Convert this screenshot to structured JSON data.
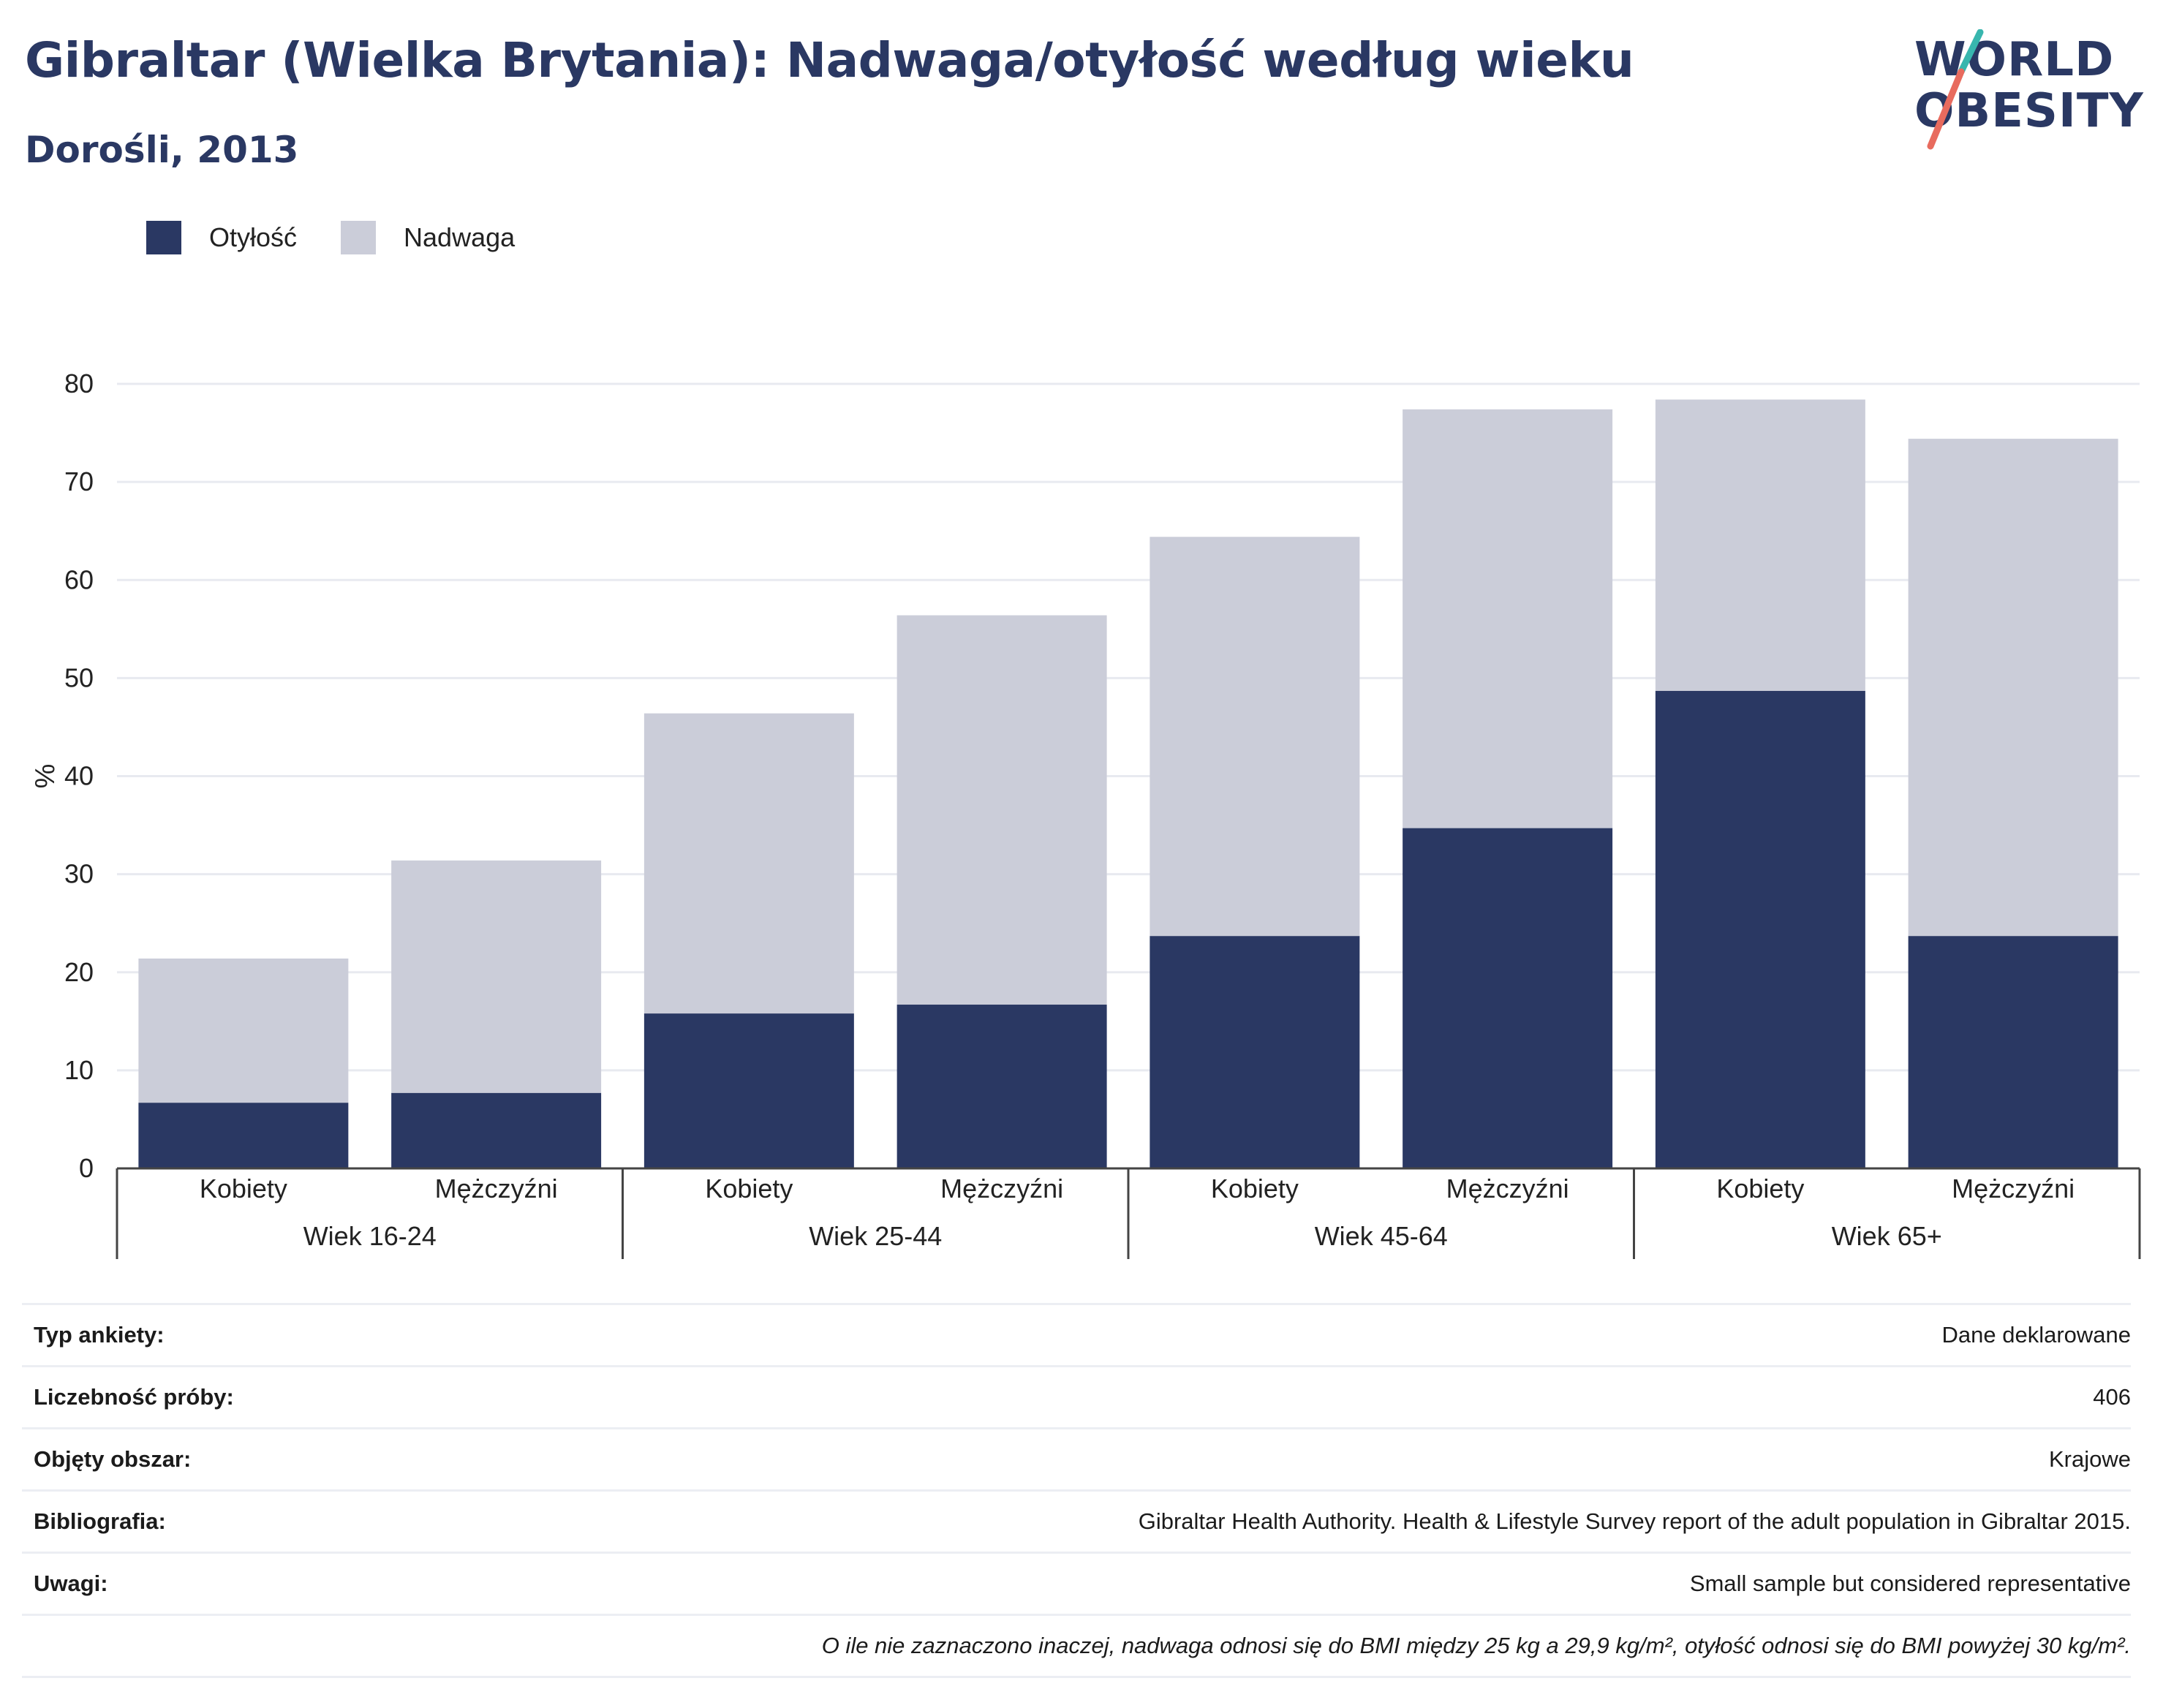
{
  "header": {
    "title": "Gibraltar (Wielka Brytania): Nadwaga/otyłość według wieku",
    "subtitle": "Dorośli, 2013"
  },
  "logo": {
    "line1": "WORLD",
    "line2": "OBESITY"
  },
  "colors": {
    "obesity": "#2a3863",
    "overweight": "#cbcdd9",
    "title": "#2a3863",
    "accent_teal": "#38b6ae",
    "accent_red": "#e86b5e"
  },
  "legend": [
    {
      "label": "Otyłość",
      "color": "#2a3863"
    },
    {
      "label": "Nadwaga",
      "color": "#cbcdd9"
    }
  ],
  "chart_data": {
    "type": "bar",
    "stacked": true,
    "ylabel": "%",
    "ylim": [
      0,
      80
    ],
    "yticks": [
      0,
      10,
      20,
      30,
      40,
      50,
      60,
      70,
      80
    ],
    "grid": true,
    "legend_position": "top-left",
    "groups": [
      "Wiek 16-24",
      "Wiek 25-44",
      "Wiek 45-64",
      "Wiek 65+"
    ],
    "categories": [
      "Kobiety",
      "Mężczyźni",
      "Kobiety",
      "Mężczyźni",
      "Kobiety",
      "Mężczyźni",
      "Kobiety",
      "Mężczyźni"
    ],
    "series": [
      {
        "name": "Otyłość",
        "values": [
          6.7,
          7.7,
          15.8,
          16.7,
          23.7,
          34.7,
          48.7,
          23.7
        ]
      },
      {
        "name": "Nadwaga",
        "values": [
          14.7,
          23.7,
          30.6,
          39.7,
          40.7,
          42.7,
          29.7,
          50.7
        ]
      }
    ]
  },
  "info": [
    {
      "key": "Typ ankiety:",
      "value": "Dane deklarowane"
    },
    {
      "key": "Liczebność próby:",
      "value": "406"
    },
    {
      "key": "Objęty obszar:",
      "value": "Krajowe"
    },
    {
      "key": "Bibliografia:",
      "value": "Gibraltar Health Authority. Health & Lifestyle Survey report of the adult population in Gibraltar 2015."
    },
    {
      "key": "Uwagi:",
      "value": "Small sample but considered representative"
    }
  ],
  "footnote": "O ile nie zaznaczono inaczej, nadwaga odnosi się do BMI między 25 kg a 29,9 kg/m², otyłość odnosi się do BMI powyżej 30 kg/m²."
}
